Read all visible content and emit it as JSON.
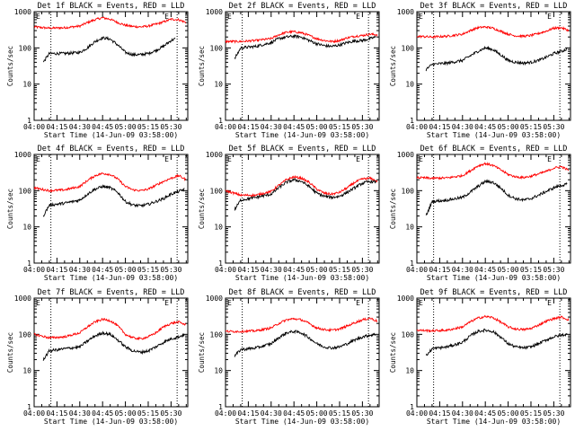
{
  "colors": {
    "events": "#000000",
    "lld": "#ff0000",
    "axis": "#000000",
    "background": "#ffffff"
  },
  "common": {
    "xlabel": "Start Time (14-Jun-09 03:58:00)",
    "ylabel": "Counts/sec",
    "x_tick_labels": [
      "04:00",
      "04:15",
      "04:30",
      "04:45",
      "05:00",
      "05:15",
      "05:30"
    ],
    "y_tick_labels": [
      "1",
      "10",
      "100",
      "1000"
    ],
    "flag_labels": [
      "E",
      "E"
    ]
  },
  "chart_data": [
    {
      "type": "line",
      "title": "Det 1f BLACK = Events, RED = LLD",
      "xlabel": "Start Time (14-Jun-09 03:58:00)",
      "ylabel": "Counts/sec",
      "xlim": [
        0,
        101
      ],
      "ylim": [
        1,
        1000
      ],
      "yscale": "log",
      "x_ticks_min": [
        0,
        15,
        30,
        45,
        60,
        75,
        90
      ],
      "x_tick_labels": [
        "04:00",
        "04:15",
        "04:30",
        "04:45",
        "05:00",
        "05:15",
        "05:30"
      ],
      "vlines_min": [
        11,
        94
      ],
      "series": [
        {
          "name": "Events",
          "color": "#000000",
          "x": [
            6,
            10,
            20,
            30,
            35,
            40,
            45,
            50,
            55,
            60,
            65,
            70,
            75,
            80,
            85,
            90,
            93
          ],
          "values": [
            40,
            70,
            70,
            75,
            100,
            150,
            190,
            175,
            120,
            75,
            65,
            65,
            70,
            85,
            110,
            160,
            180
          ]
        },
        {
          "name": "LLD",
          "color": "#ff0000",
          "x": [
            0,
            10,
            20,
            30,
            35,
            40,
            45,
            50,
            55,
            60,
            65,
            70,
            75,
            80,
            85,
            90,
            95,
            100
          ],
          "values": [
            380,
            350,
            360,
            400,
            500,
            600,
            680,
            620,
            500,
            420,
            390,
            380,
            400,
            450,
            520,
            620,
            600,
            500
          ]
        }
      ]
    },
    {
      "type": "line",
      "title": "Det 2f BLACK = Events, RED = LLD",
      "xlabel": "Start Time (14-Jun-09 03:58:00)",
      "ylabel": "Counts/sec",
      "xlim": [
        0,
        101
      ],
      "ylim": [
        1,
        1000
      ],
      "yscale": "log",
      "x_ticks_min": [
        0,
        15,
        30,
        45,
        60,
        75,
        90
      ],
      "x_tick_labels": [
        "04:00",
        "04:15",
        "04:30",
        "04:45",
        "05:00",
        "05:15",
        "05:30"
      ],
      "vlines_min": [
        11,
        94
      ],
      "series": [
        {
          "name": "Events",
          "color": "#000000",
          "x": [
            6,
            10,
            20,
            30,
            35,
            40,
            45,
            50,
            55,
            60,
            65,
            70,
            75,
            80,
            85,
            90,
            95,
            99
          ],
          "values": [
            50,
            100,
            110,
            140,
            180,
            200,
            210,
            200,
            160,
            130,
            115,
            110,
            120,
            140,
            155,
            160,
            180,
            200
          ]
        },
        {
          "name": "LLD",
          "color": "#ff0000",
          "x": [
            0,
            10,
            20,
            30,
            35,
            40,
            45,
            50,
            55,
            60,
            65,
            70,
            75,
            80,
            85,
            90,
            95,
            100
          ],
          "values": [
            150,
            150,
            160,
            180,
            230,
            270,
            280,
            260,
            220,
            180,
            160,
            150,
            160,
            190,
            210,
            220,
            240,
            230
          ]
        }
      ]
    },
    {
      "type": "line",
      "title": "Det 3f BLACK = Events, RED = LLD",
      "xlabel": "Start Time (14-Jun-09 03:58:00)",
      "ylabel": "Counts/sec",
      "xlim": [
        0,
        101
      ],
      "ylim": [
        1,
        1000
      ],
      "yscale": "log",
      "x_ticks_min": [
        0,
        15,
        30,
        45,
        60,
        75,
        90
      ],
      "x_tick_labels": [
        "04:00",
        "04:15",
        "04:30",
        "04:45",
        "05:00",
        "05:15",
        "05:30"
      ],
      "vlines_min": [
        11,
        94
      ],
      "series": [
        {
          "name": "Events",
          "color": "#000000",
          "x": [
            6,
            10,
            20,
            30,
            35,
            40,
            45,
            50,
            55,
            60,
            65,
            70,
            75,
            80,
            85,
            90,
            95,
            99
          ],
          "values": [
            25,
            35,
            38,
            45,
            60,
            80,
            100,
            90,
            65,
            45,
            40,
            38,
            40,
            45,
            55,
            70,
            80,
            95
          ]
        },
        {
          "name": "LLD",
          "color": "#ff0000",
          "x": [
            0,
            10,
            20,
            30,
            35,
            40,
            45,
            50,
            55,
            60,
            65,
            70,
            75,
            80,
            85,
            90,
            95,
            100
          ],
          "values": [
            210,
            200,
            210,
            240,
            300,
            360,
            380,
            350,
            290,
            240,
            215,
            210,
            220,
            250,
            290,
            350,
            360,
            300
          ]
        }
      ]
    },
    {
      "type": "line",
      "title": "Det 4f BLACK = Events, RED = LLD",
      "xlabel": "Start Time (14-Jun-09 03:58:00)",
      "ylabel": "Counts/sec",
      "xlim": [
        0,
        101
      ],
      "ylim": [
        1,
        1000
      ],
      "yscale": "log",
      "x_ticks_min": [
        0,
        15,
        30,
        45,
        60,
        75,
        90
      ],
      "x_tick_labels": [
        "04:00",
        "04:15",
        "04:30",
        "04:45",
        "05:00",
        "05:15",
        "05:30"
      ],
      "vlines_min": [
        11,
        94
      ],
      "series": [
        {
          "name": "Events",
          "color": "#000000",
          "x": [
            6,
            10,
            20,
            30,
            35,
            40,
            45,
            50,
            55,
            60,
            65,
            70,
            75,
            80,
            85,
            90,
            95,
            99
          ],
          "values": [
            20,
            40,
            45,
            55,
            80,
            110,
            130,
            120,
            90,
            50,
            40,
            38,
            42,
            50,
            60,
            80,
            95,
            110
          ]
        },
        {
          "name": "LLD",
          "color": "#ff0000",
          "x": [
            0,
            10,
            20,
            30,
            35,
            40,
            45,
            50,
            55,
            60,
            65,
            70,
            75,
            80,
            85,
            90,
            95,
            100
          ],
          "values": [
            120,
            100,
            105,
            130,
            190,
            260,
            300,
            280,
            210,
            130,
            105,
            100,
            110,
            140,
            180,
            220,
            260,
            200
          ]
        }
      ]
    },
    {
      "type": "line",
      "title": "Det 5f BLACK = Events, RED = LLD",
      "xlabel": "Start Time (14-Jun-09 03:58:00)",
      "ylabel": "Counts/sec",
      "xlim": [
        0,
        101
      ],
      "ylim": [
        1,
        1000
      ],
      "yscale": "log",
      "x_ticks_min": [
        0,
        15,
        30,
        45,
        60,
        75,
        90
      ],
      "x_tick_labels": [
        "04:00",
        "04:15",
        "04:30",
        "04:45",
        "05:00",
        "05:15",
        "05:30"
      ],
      "vlines_min": [
        11,
        94
      ],
      "series": [
        {
          "name": "Events",
          "color": "#000000",
          "x": [
            6,
            10,
            20,
            30,
            35,
            40,
            45,
            50,
            55,
            60,
            65,
            70,
            75,
            80,
            85,
            90,
            95,
            99
          ],
          "values": [
            30,
            55,
            65,
            80,
            120,
            170,
            200,
            180,
            130,
            85,
            70,
            65,
            70,
            90,
            120,
            160,
            180,
            170
          ]
        },
        {
          "name": "LLD",
          "color": "#ff0000",
          "x": [
            0,
            10,
            20,
            30,
            35,
            40,
            45,
            50,
            55,
            60,
            65,
            70,
            75,
            80,
            85,
            90,
            95,
            100
          ],
          "values": [
            100,
            75,
            75,
            95,
            140,
            200,
            240,
            220,
            170,
            110,
            85,
            80,
            90,
            120,
            170,
            210,
            220,
            180
          ]
        }
      ]
    },
    {
      "type": "line",
      "title": "Det 6f BLACK = Events, RED = LLD",
      "xlabel": "Start Time (14-Jun-09 03:58:00)",
      "ylabel": "Counts/sec",
      "xlim": [
        0,
        101
      ],
      "ylim": [
        1,
        1000
      ],
      "yscale": "log",
      "x_ticks_min": [
        0,
        15,
        30,
        45,
        60,
        75,
        90
      ],
      "x_tick_labels": [
        "04:00",
        "04:15",
        "04:30",
        "04:45",
        "05:00",
        "05:15",
        "05:30"
      ],
      "vlines_min": [
        11,
        94
      ],
      "series": [
        {
          "name": "Events",
          "color": "#000000",
          "x": [
            6,
            10,
            20,
            30,
            35,
            40,
            45,
            50,
            55,
            60,
            65,
            70,
            75,
            80,
            85,
            90,
            95,
            99
          ],
          "values": [
            20,
            50,
            55,
            65,
            90,
            130,
            180,
            170,
            120,
            75,
            60,
            55,
            60,
            75,
            95,
            120,
            140,
            150
          ]
        },
        {
          "name": "LLD",
          "color": "#ff0000",
          "x": [
            0,
            10,
            20,
            30,
            35,
            40,
            45,
            50,
            55,
            60,
            65,
            70,
            75,
            80,
            85,
            90,
            95,
            100
          ],
          "values": [
            230,
            220,
            225,
            260,
            350,
            480,
            560,
            500,
            380,
            280,
            240,
            230,
            250,
            290,
            340,
            420,
            460,
            360
          ]
        }
      ]
    },
    {
      "type": "line",
      "title": "Det 7f BLACK = Events, RED = LLD",
      "xlabel": "Start Time (14-Jun-09 03:58:00)",
      "ylabel": "Counts/sec",
      "xlim": [
        0,
        101
      ],
      "ylim": [
        1,
        1000
      ],
      "yscale": "log",
      "x_ticks_min": [
        0,
        15,
        30,
        45,
        60,
        75,
        90
      ],
      "x_tick_labels": [
        "04:00",
        "04:15",
        "04:30",
        "04:45",
        "05:00",
        "05:15",
        "05:30"
      ],
      "vlines_min": [
        11,
        94
      ],
      "series": [
        {
          "name": "Events",
          "color": "#000000",
          "x": [
            6,
            10,
            20,
            30,
            35,
            40,
            45,
            50,
            55,
            60,
            65,
            70,
            75,
            80,
            85,
            90,
            95,
            99
          ],
          "values": [
            20,
            35,
            40,
            45,
            65,
            90,
            110,
            100,
            70,
            45,
            35,
            32,
            35,
            45,
            60,
            75,
            85,
            100
          ]
        },
        {
          "name": "LLD",
          "color": "#ff0000",
          "x": [
            0,
            10,
            20,
            30,
            35,
            40,
            45,
            50,
            55,
            60,
            65,
            70,
            75,
            80,
            85,
            90,
            95,
            100
          ],
          "values": [
            100,
            80,
            85,
            110,
            160,
            220,
            260,
            240,
            170,
            100,
            80,
            75,
            85,
            110,
            160,
            200,
            220,
            180
          ]
        }
      ]
    },
    {
      "type": "line",
      "title": "Det 8f BLACK = Events, RED = LLD",
      "xlabel": "Start Time (14-Jun-09 03:58:00)",
      "ylabel": "Counts/sec",
      "xlim": [
        0,
        101
      ],
      "ylim": [
        1,
        1000
      ],
      "yscale": "log",
      "x_ticks_min": [
        0,
        15,
        30,
        45,
        60,
        75,
        90
      ],
      "x_tick_labels": [
        "04:00",
        "04:15",
        "04:30",
        "04:45",
        "05:00",
        "05:15",
        "05:30"
      ],
      "vlines_min": [
        11,
        94
      ],
      "series": [
        {
          "name": "Events",
          "color": "#000000",
          "x": [
            6,
            10,
            20,
            30,
            35,
            40,
            45,
            50,
            55,
            60,
            65,
            70,
            75,
            80,
            85,
            90,
            95,
            99
          ],
          "values": [
            25,
            38,
            42,
            55,
            80,
            110,
            120,
            110,
            80,
            55,
            45,
            42,
            45,
            55,
            70,
            85,
            95,
            100
          ]
        },
        {
          "name": "LLD",
          "color": "#ff0000",
          "x": [
            0,
            10,
            20,
            30,
            35,
            40,
            45,
            50,
            55,
            60,
            65,
            70,
            75,
            80,
            85,
            90,
            95,
            100
          ],
          "values": [
            120,
            120,
            125,
            150,
            200,
            250,
            270,
            250,
            200,
            150,
            135,
            130,
            140,
            170,
            210,
            250,
            280,
            230
          ]
        }
      ]
    },
    {
      "type": "line",
      "title": "Det 9f BLACK = Events, RED = LLD",
      "xlabel": "Start Time (14-Jun-09 03:58:00)",
      "ylabel": "Counts/sec",
      "xlim": [
        0,
        101
      ],
      "ylim": [
        1,
        1000
      ],
      "yscale": "log",
      "x_ticks_min": [
        0,
        15,
        30,
        45,
        60,
        75,
        90
      ],
      "x_tick_labels": [
        "04:00",
        "04:15",
        "04:30",
        "04:45",
        "05:00",
        "05:15",
        "05:30"
      ],
      "vlines_min": [
        11,
        94
      ],
      "series": [
        {
          "name": "Events",
          "color": "#000000",
          "x": [
            6,
            10,
            20,
            30,
            35,
            40,
            45,
            50,
            55,
            60,
            65,
            70,
            75,
            80,
            85,
            90,
            95,
            99
          ],
          "values": [
            25,
            40,
            45,
            60,
            90,
            120,
            130,
            120,
            85,
            55,
            45,
            42,
            45,
            55,
            70,
            85,
            95,
            100
          ]
        },
        {
          "name": "LLD",
          "color": "#ff0000",
          "x": [
            0,
            10,
            20,
            30,
            35,
            40,
            45,
            50,
            55,
            60,
            65,
            70,
            75,
            80,
            85,
            90,
            95,
            100
          ],
          "values": [
            130,
            125,
            130,
            160,
            220,
            280,
            310,
            290,
            220,
            160,
            140,
            135,
            145,
            180,
            230,
            270,
            300,
            250
          ]
        }
      ]
    }
  ]
}
